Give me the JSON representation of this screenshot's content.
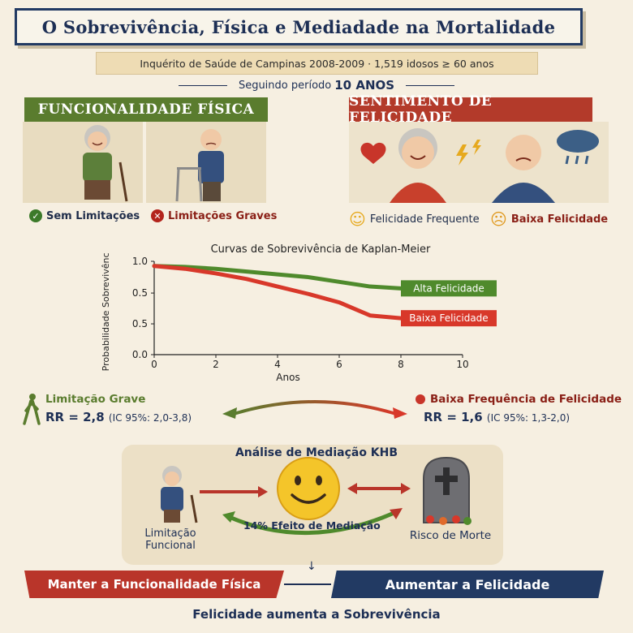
{
  "header": {
    "title": "O Sobrevivência, Física e Mediadade na Mortalidade",
    "study_info": "Inquérito de Saúde de Campinas 2008-2009 · 1,519 idosos ≥ 60 anos",
    "followup_prefix": "Seguindo período",
    "followup_value": "10 ANOS"
  },
  "functional": {
    "header": "FUNCIONALIDADE FÍSICA",
    "no_limit_label": "Sem Limitações",
    "severe_limit_label": "Limitações Graves"
  },
  "happiness": {
    "header": "SENTIMENTO DE FELICIDADE",
    "frequent_label": "Felicidade Frequente",
    "low_label": "Baixa Felicidade"
  },
  "chart_data": {
    "type": "line",
    "title": "Curvas de Sobrevivência de Kaplan-Meier",
    "xlabel": "Anos",
    "ylabel": "Probabilidade Sobrevivência",
    "xlim": [
      0,
      10
    ],
    "ylim": [
      0,
      1
    ],
    "x_ticks": [
      "0",
      "2",
      "4",
      "6",
      "8",
      "10"
    ],
    "y_ticks": [
      "0.0",
      "0.5",
      "0.5",
      "1.0"
    ],
    "series": [
      {
        "name": "Alta Felicidade",
        "color": "#4f8a2c",
        "x": [
          0,
          1,
          2,
          3,
          4,
          5,
          6,
          7,
          8
        ],
        "y": [
          0.95,
          0.94,
          0.92,
          0.89,
          0.86,
          0.83,
          0.78,
          0.73,
          0.71
        ]
      },
      {
        "name": "Baixa Felicidade",
        "color": "#d8382a",
        "x": [
          0,
          1,
          2,
          3,
          4,
          5,
          6,
          7,
          8
        ],
        "y": [
          0.95,
          0.92,
          0.87,
          0.81,
          0.73,
          0.65,
          0.56,
          0.42,
          0.39
        ]
      }
    ]
  },
  "rr": {
    "left_title": "Limitação Grave",
    "left_value": "RR = 2,8",
    "left_ci": "(IC 95%: 2,0-3,8)",
    "right_title": "Baixa Frequência de Felicidade",
    "right_value": "RR = 1,6",
    "right_ci": "(IC 95%: 1,3-2,0)"
  },
  "mediation": {
    "title": "Análise de Mediação KHB",
    "left_label": "Limitação Funcional",
    "effect_label": "14% Efeito de Mediação",
    "right_label": "Risco de Morte"
  },
  "bottom": {
    "left_banner": "Manter a Funcionalidade Física",
    "right_banner": "Aumentar a Felicidade",
    "footer": "Felicidade aumenta a Sobrevivência"
  },
  "colors": {
    "navy": "#223a63",
    "green": "#5a7c2e",
    "red": "#b33a2a",
    "cream": "#f6efe1"
  }
}
